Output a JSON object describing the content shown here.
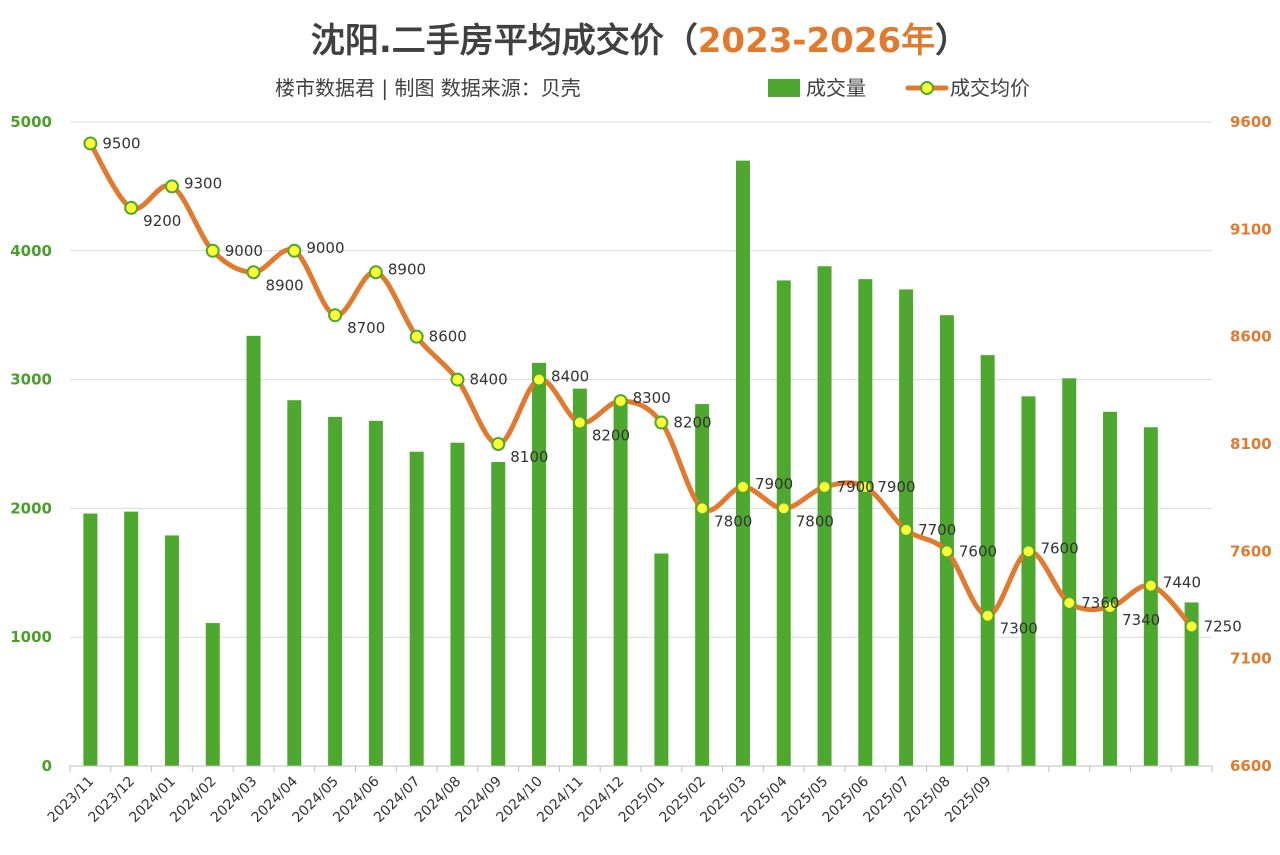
{
  "header": {
    "title_prefix": "沈阳.二手房平均成交价（",
    "title_years": "2023-2026年",
    "title_suffix": "）",
    "subtitle": "楼市数据君 | 制图  数据来源：贝壳"
  },
  "colors": {
    "bar": "#4ea72e",
    "line": "#e07a2f",
    "marker_fill": "#ffff33",
    "marker_stroke": "#4ea72e",
    "left_axis": "#4a9e2a",
    "right_axis": "#e07a2f"
  },
  "chart_data": {
    "type": "bar",
    "title": "沈阳.二手房平均成交价（2023-2026年）",
    "categories": [
      "2023/11",
      "2023/12",
      "2024/01",
      "2024/02",
      "2024/03",
      "2024/04",
      "2024/05",
      "2024/06",
      "2024/07",
      "2024/08",
      "2024/09",
      "2024/10",
      "2024/11",
      "2024/12",
      "2025/01",
      "2025/02",
      "2025/03",
      "2025/04",
      "2025/05",
      "2025/06",
      "2025/07",
      "2025/08",
      "2025/09",
      "",
      "",
      "",
      "",
      ""
    ],
    "series": [
      {
        "name": "成交量",
        "type": "bar",
        "axis": "left",
        "values": [
          1960,
          1975,
          1790,
          1110,
          3340,
          2840,
          2710,
          2680,
          2440,
          2510,
          2360,
          3130,
          2930,
          2830,
          1650,
          2810,
          4700,
          3770,
          3880,
          3780,
          3700,
          3500,
          3190,
          2870,
          3010,
          2750,
          2630,
          1270
        ]
      },
      {
        "name": "成交均价",
        "type": "line",
        "axis": "right",
        "values": [
          9500,
          9200,
          9300,
          9000,
          8900,
          9000,
          8700,
          8900,
          8600,
          8400,
          8100,
          8400,
          8200,
          8300,
          8200,
          7800,
          7900,
          7800,
          7900,
          7900,
          7700,
          7600,
          7300,
          7600,
          7360,
          7340,
          7440,
          7250
        ],
        "labels": [
          "9500",
          "9200",
          "9300",
          "9000",
          "8900",
          "9000",
          "8700",
          "8900",
          "8600",
          "8400",
          "8100",
          "8400",
          "8200",
          "8300",
          "8200",
          "7800",
          "7900",
          "7800",
          "7900",
          "7900",
          "7700",
          "7600",
          "7300",
          "7600",
          "7360",
          "7340",
          "7440",
          "7250"
        ]
      }
    ],
    "y_left": {
      "min": 0,
      "max": 5000,
      "ticks": [
        "0",
        "1000",
        "2000",
        "3000",
        "4000",
        "5000"
      ]
    },
    "y_right": {
      "min": 6600,
      "max": 9600,
      "ticks": [
        "6600",
        "7100",
        "7600",
        "8100",
        "8600",
        "9100",
        "9600"
      ]
    },
    "grid": true,
    "legend_position": "top-right"
  }
}
